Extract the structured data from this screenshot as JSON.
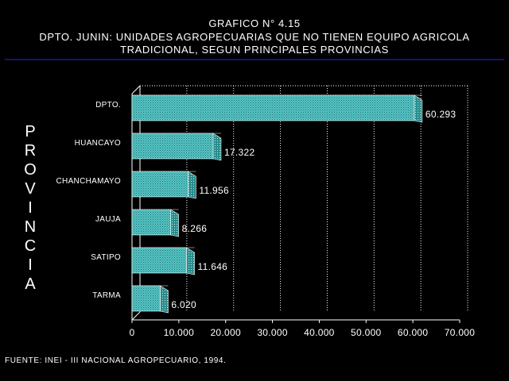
{
  "title_lines": [
    "GRAFICO N° 4.15",
    "DPTO. JUNIN: UNIDADES AGROPECUARIAS QUE NO TIENEN EQUIPO AGRICOLA",
    "TRADICIONAL, SEGUN PRINCIPALES PROVINCIAS"
  ],
  "source": "FUENTE: INEI - III NACIONAL AGROPECUARIO, 1994.",
  "colors": {
    "background": "#000000",
    "bar_front": "#58c8c8",
    "bar_side": "#2a8c8c",
    "bar_top": "#8ee6e6",
    "rule": "#1818a8",
    "grid": "#ffffff"
  },
  "chart_data": {
    "type": "bar",
    "orientation": "horizontal",
    "categories": [
      "DPTO.",
      "HUANCAYO",
      "CHANCHAMAYO",
      "JAUJA",
      "SATIPO",
      "TARMA"
    ],
    "values": [
      60293,
      17322,
      11956,
      8266,
      11646,
      6020
    ],
    "value_labels": [
      "60.293",
      "17.322",
      "11.956",
      "8.266",
      "11.646",
      "6.020"
    ],
    "xlim": [
      0,
      70000
    ],
    "xticks": [
      0,
      10000,
      20000,
      30000,
      40000,
      50000,
      60000,
      70000
    ],
    "xtick_labels": [
      "0",
      "10.000",
      "20.000",
      "30.000",
      "40.000",
      "50.000",
      "60.000",
      "70.000"
    ],
    "ylabel": "PROVINCIA",
    "grid": "vertical dotted"
  }
}
